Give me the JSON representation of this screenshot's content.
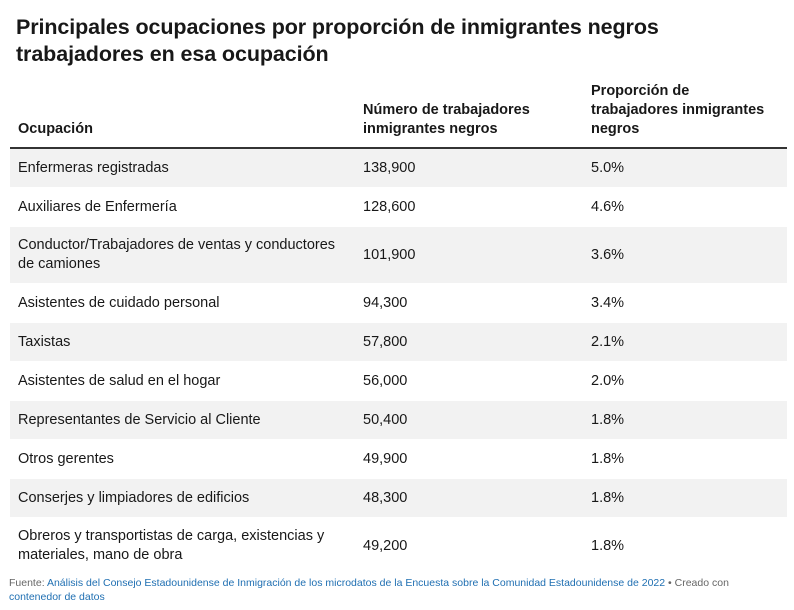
{
  "title": "Principales ocupaciones por proporción de inmigrantes negros trabajadores en esa ocupación",
  "table": {
    "headers": [
      "Ocupación",
      "Número de trabajadores inmigrantes negros",
      "Proporción de trabajadores inmigrantes negros"
    ],
    "rows": [
      {
        "ocupacion": "Enfermeras registradas",
        "numero": "138,900",
        "proporcion": "5.0%"
      },
      {
        "ocupacion": "Auxiliares de Enfermería",
        "numero": "128,600",
        "proporcion": "4.6%"
      },
      {
        "ocupacion": "Conductor/Trabajadores de ventas y conductores de camiones",
        "numero": "101,900",
        "proporcion": "3.6%"
      },
      {
        "ocupacion": "Asistentes de cuidado personal",
        "numero": "94,300",
        "proporcion": "3.4%"
      },
      {
        "ocupacion": "Taxistas",
        "numero": "57,800",
        "proporcion": "2.1%"
      },
      {
        "ocupacion": "Asistentes de salud en el hogar",
        "numero": "56,000",
        "proporcion": "2.0%"
      },
      {
        "ocupacion": "Representantes de Servicio al Cliente",
        "numero": "50,400",
        "proporcion": "1.8%"
      },
      {
        "ocupacion": "Otros gerentes",
        "numero": "49,900",
        "proporcion": "1.8%"
      },
      {
        "ocupacion": "Conserjes y limpiadores de edificios",
        "numero": "48,300",
        "proporcion": "1.8%"
      },
      {
        "ocupacion": "Obreros y transportistas de carga, existencias y materiales, mano de obra",
        "numero": "49,200",
        "proporcion": "1.8%"
      }
    ]
  },
  "footer": {
    "prefix": "Fuente: ",
    "source_link": "Análisis del Consejo Estadounidense de Inmigración de los microdatos de la Encuesta sobre la Comunidad Estadounidense de 2022",
    "separator": " • Creado con ",
    "tool_link": "contenedor de datos"
  },
  "colors": {
    "zebra_row": "#f2f2f2",
    "header_rule": "#333333",
    "link": "#1f6fb2",
    "footer_text": "#666666"
  }
}
